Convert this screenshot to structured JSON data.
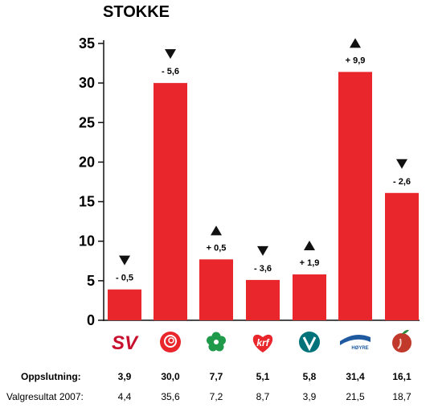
{
  "chart_data": {
    "type": "bar",
    "title": "STOKKE",
    "ylim": [
      0,
      35
    ],
    "yticks": [
      0,
      5,
      10,
      15,
      20,
      25,
      30,
      35
    ],
    "grid": false,
    "bar_color": "#e8262b",
    "categories": [
      "SV",
      "Ap",
      "Sp",
      "KrF",
      "V",
      "Høyre",
      "FrP"
    ],
    "logo_text": {
      "sv": "SV",
      "krf": "krf",
      "hoyre": "HØYRE"
    },
    "logo_colors": [
      "#c8102e",
      "#e8262b",
      "#1f9a4a",
      "#e8262b",
      "#00727a",
      "#1f5aa0",
      "#c0392b"
    ],
    "values": [
      3.9,
      30.0,
      7.7,
      5.1,
      5.8,
      31.4,
      16.1
    ],
    "change_labels": [
      "- 0,5",
      "- 5,6",
      "+ 0,5",
      "- 3,6",
      "+ 1,9",
      "+ 9,9",
      "- 2,6"
    ],
    "change_direction": [
      "down",
      "down",
      "up",
      "down",
      "up",
      "up",
      "down"
    ],
    "table": {
      "row1_label": "Oppslutning:",
      "row1_values": [
        "3,9",
        "30,0",
        "7,7",
        "5,1",
        "5,8",
        "31,4",
        "16,1"
      ],
      "row2_label": "Valgresultat 2007:",
      "row2_values": [
        "4,4",
        "35,6",
        "7,2",
        "8,7",
        "3,9",
        "21,5",
        "18,7"
      ]
    }
  }
}
